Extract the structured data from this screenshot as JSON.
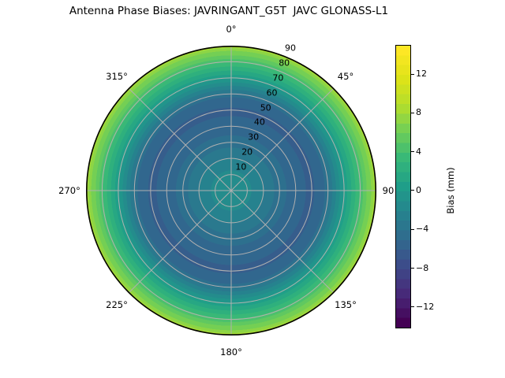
{
  "title": "Antenna Phase Biases: JAVRINGANT_G5T  JAVC GLONASS-L1",
  "chart_data": {
    "type": "heatmap",
    "projection": "polar",
    "title": "Antenna Phase Biases: JAVRINGANT_G5T  JAVC GLONASS-L1",
    "colormap": "viridis",
    "grid_color": "#b0b0b0",
    "edge_color": "#000000",
    "vmin": -14.2,
    "vmax": 15.0,
    "contour_step_mm": 1,
    "angular_ticks_deg": [
      0,
      45,
      90,
      135,
      180,
      225,
      270,
      315
    ],
    "angular_tick_labels": [
      "0°",
      "45°",
      "90",
      "135°",
      "180°",
      "225°",
      "270°",
      "315°"
    ],
    "radial_ticks": [
      10,
      20,
      30,
      40,
      50,
      60,
      70,
      80,
      90
    ],
    "radial_max": 90,
    "radial_label_azimuth_deg": 22.5,
    "azimuthally_symmetric": true,
    "bias_profile_mm": {
      "zenith_deg": [
        0,
        10,
        20,
        30,
        40,
        50,
        58,
        66,
        73,
        79,
        84,
        88,
        90
      ],
      "bias_mm": [
        -1.0,
        -1.7,
        -3.0,
        -4.5,
        -5.7,
        -6.2,
        -5.0,
        -1.5,
        1.5,
        3.8,
        6.0,
        7.5,
        9.5
      ]
    },
    "colorbar": {
      "label": "Bias (mm)",
      "tick_values": [
        12,
        8,
        4,
        0,
        -4,
        -8,
        -12
      ],
      "tick_labels": [
        "12",
        "8",
        "4",
        "0",
        "−4",
        "−8",
        "−12"
      ],
      "n_bands": 29,
      "top_color": "#fde725",
      "bottom_color": "#440154"
    }
  }
}
